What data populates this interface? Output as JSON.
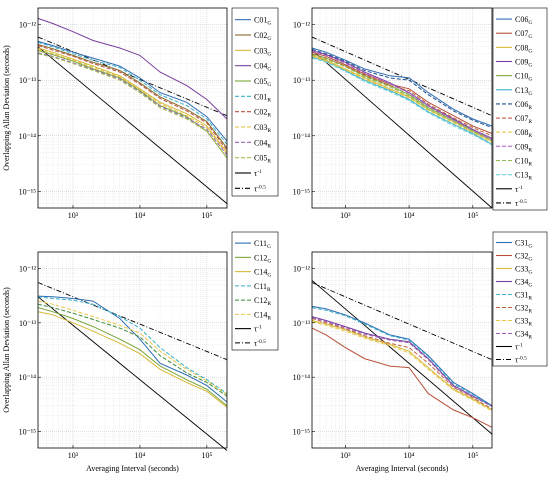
{
  "figure_ylabel": "Overlapping Allan Deviation (seconds)",
  "figure_xlabel": "Averaging Interval (seconds)",
  "chart_data": [
    {
      "type": "line",
      "panel": "top-left",
      "xscale": "log",
      "yscale": "log",
      "xlim": [
        300,
        200000
      ],
      "ylim": [
        5e-16,
        2e-12
      ],
      "xticks": [
        "10³",
        "10⁴",
        "10⁵"
      ],
      "yticks": [
        "10⁻¹²",
        "10⁻¹³",
        "10⁻¹⁴",
        "10⁻¹⁵"
      ],
      "ylabel": "Overlapping Allan Deviation (seconds)",
      "xlabel": "",
      "grid": true,
      "legend": "right",
      "x": [
        300,
        500,
        1000,
        2000,
        5000,
        10000,
        20000,
        50000,
        100000,
        200000
      ],
      "series": [
        {
          "name": "C01",
          "sub": "G",
          "color": "#2f6db4",
          "dash": "",
          "values": [
            5e-13,
            4.2e-13,
            3.2e-13,
            2.5e-13,
            1.8e-13,
            1.1e-13,
            6e-14,
            4e-14,
            2.2e-14,
            8e-15
          ]
        },
        {
          "name": "C02",
          "sub": "G",
          "color": "#8a6a2a",
          "dash": "",
          "values": [
            4.4e-13,
            3.7e-13,
            2.8e-13,
            2.1e-13,
            1.5e-13,
            9e-14,
            5e-14,
            3e-14,
            1.8e-14,
            6e-15
          ]
        },
        {
          "name": "C03",
          "sub": "G",
          "color": "#d8b93a",
          "dash": "",
          "values": [
            3.8e-13,
            3.2e-13,
            2.4e-13,
            1.8e-13,
            1.2e-13,
            7e-14,
            4e-14,
            2.5e-14,
            1.5e-14,
            5e-15
          ]
        },
        {
          "name": "C04",
          "sub": "G",
          "color": "#7a3f9e",
          "dash": "",
          "values": [
            1.3e-12,
            1.05e-12,
            7.5e-13,
            5.2e-13,
            3.8e-13,
            2.8e-13,
            1.4e-13,
            8e-14,
            4.5e-14,
            2e-14
          ]
        },
        {
          "name": "C05",
          "sub": "G",
          "color": "#7aa63a",
          "dash": "",
          "values": [
            3.4e-13,
            2.9e-13,
            2.2e-13,
            1.6e-13,
            1.1e-13,
            6.5e-14,
            3.5e-14,
            2.2e-14,
            1.2e-14,
            4e-15
          ]
        },
        {
          "name": "C01",
          "sub": "R",
          "color": "#3ab0c8",
          "dash": "4,2",
          "values": [
            4.8e-13,
            4e-13,
            3e-13,
            2.3e-13,
            1.7e-13,
            1e-13,
            5.5e-14,
            3.5e-14,
            2e-14,
            7e-15
          ]
        },
        {
          "name": "C02",
          "sub": "R",
          "color": "#b8503a",
          "dash": "4,2",
          "values": [
            4.2e-13,
            3.5e-13,
            2.7e-13,
            2e-13,
            1.4e-13,
            8.5e-14,
            4.7e-14,
            2.8e-14,
            1.7e-14,
            5.5e-15
          ]
        },
        {
          "name": "C03",
          "sub": "R",
          "color": "#e0c040",
          "dash": "4,2",
          "values": [
            3.6e-13,
            3e-13,
            2.3e-13,
            1.7e-13,
            1.15e-13,
            6.8e-14,
            3.8e-14,
            2.3e-14,
            1.4e-14,
            4.8e-15
          ]
        },
        {
          "name": "C04",
          "sub": "R",
          "color": "#9a60b8",
          "dash": "4,2",
          "values": [
            3.1e-13,
            2.7e-13,
            2.05e-13,
            1.55e-13,
            1.05e-13,
            6.2e-14,
            3.4e-14,
            2.1e-14,
            1.3e-14,
            4.5e-15
          ]
        },
        {
          "name": "C05",
          "sub": "R",
          "color": "#a0c050",
          "dash": "4,2",
          "values": [
            3e-13,
            2.6e-13,
            2e-13,
            1.5e-13,
            1e-13,
            6e-14,
            3.2e-14,
            2e-14,
            1.2e-14,
            4e-15
          ]
        }
      ]
    },
    {
      "type": "line",
      "panel": "top-right",
      "xscale": "log",
      "yscale": "log",
      "xlim": [
        300,
        200000
      ],
      "ylim": [
        5e-16,
        2e-12
      ],
      "xticks": [
        "10³",
        "10⁴",
        "10⁵"
      ],
      "yticks": [
        "10⁻¹²",
        "10⁻¹³",
        "10⁻¹⁴",
        "10⁻¹⁵"
      ],
      "ylabel": "",
      "xlabel": "",
      "grid": true,
      "legend": "right",
      "x": [
        300,
        500,
        1000,
        2000,
        5000,
        10000,
        20000,
        50000,
        100000,
        200000
      ],
      "series": [
        {
          "name": "C06",
          "sub": "G",
          "color": "#2f6db4",
          "dash": "",
          "values": [
            3.8e-13,
            3.2e-13,
            2.3e-13,
            1.6e-13,
            1.2e-13,
            1.1e-13,
            6e-14,
            3e-14,
            2e-14,
            1.5e-14
          ]
        },
        {
          "name": "C07",
          "sub": "G",
          "color": "#b8503a",
          "dash": "",
          "values": [
            3.2e-13,
            2.7e-13,
            1.9e-13,
            1.3e-13,
            8.5e-14,
            7e-14,
            4e-14,
            2.3e-14,
            1.5e-14,
            1.1e-14
          ]
        },
        {
          "name": "C08",
          "sub": "G",
          "color": "#d8b93a",
          "dash": "",
          "values": [
            2.8e-13,
            2.3e-13,
            1.6e-13,
            1.1e-13,
            7e-14,
            5e-14,
            3e-14,
            1.8e-14,
            1.2e-14,
            8e-15
          ]
        },
        {
          "name": "C09",
          "sub": "G",
          "color": "#7a3f9e",
          "dash": "",
          "values": [
            3.4e-13,
            2.9e-13,
            2.1e-13,
            1.4e-13,
            9e-14,
            6e-14,
            3.5e-14,
            2e-14,
            1.3e-14,
            9e-15
          ]
        },
        {
          "name": "C10",
          "sub": "G",
          "color": "#7aa63a",
          "dash": "",
          "values": [
            3e-13,
            2.5e-13,
            1.8e-13,
            1.2e-13,
            8e-14,
            5.5e-14,
            3.2e-14,
            1.9e-14,
            1.25e-14,
            8.5e-15
          ]
        },
        {
          "name": "C13",
          "sub": "G",
          "color": "#3ab0c8",
          "dash": "",
          "values": [
            2.6e-13,
            2.2e-13,
            1.5e-13,
            1e-13,
            6.5e-14,
            4.5e-14,
            2.7e-14,
            1.6e-14,
            1.1e-14,
            7e-15
          ]
        },
        {
          "name": "C06",
          "sub": "R",
          "color": "#1f4f8c",
          "dash": "4,2",
          "values": [
            3.6e-13,
            3e-13,
            2.2e-13,
            1.5e-13,
            1.1e-13,
            1e-13,
            5.5e-14,
            2.8e-14,
            1.9e-14,
            1.4e-14
          ]
        },
        {
          "name": "C07",
          "sub": "R",
          "color": "#c06040",
          "dash": "4,2",
          "values": [
            3e-13,
            2.5e-13,
            1.8e-13,
            1.25e-13,
            8e-14,
            6.5e-14,
            3.7e-14,
            2.1e-14,
            1.4e-14,
            1e-14
          ]
        },
        {
          "name": "C08",
          "sub": "R",
          "color": "#e8c848",
          "dash": "4,2",
          "values": [
            2.7e-13,
            2.2e-13,
            1.55e-13,
            1.05e-13,
            6.8e-14,
            4.8e-14,
            2.9e-14,
            1.7e-14,
            1.15e-14,
            7.5e-15
          ]
        },
        {
          "name": "C09",
          "sub": "R",
          "color": "#b070c8",
          "dash": "4,2",
          "values": [
            3.3e-13,
            2.8e-13,
            2e-13,
            1.35e-13,
            8.7e-14,
            5.8e-14,
            3.4e-14,
            1.9e-14,
            1.25e-14,
            8.5e-15
          ]
        },
        {
          "name": "C10",
          "sub": "R",
          "color": "#8fbf4a",
          "dash": "4,2",
          "values": [
            2.9e-13,
            2.4e-13,
            1.75e-13,
            1.15e-13,
            7.6e-14,
            5.2e-14,
            3e-14,
            1.8e-14,
            1.2e-14,
            8e-15
          ]
        },
        {
          "name": "C13",
          "sub": "R",
          "color": "#6fd0e0",
          "dash": "4,2",
          "values": [
            2.5e-13,
            2.1e-13,
            1.45e-13,
            9.5e-14,
            6.2e-14,
            4.3e-14,
            2.6e-14,
            1.5e-14,
            1.05e-14,
            6.8e-15
          ]
        }
      ]
    },
    {
      "type": "line",
      "panel": "bottom-left",
      "xscale": "log",
      "yscale": "log",
      "xlim": [
        300,
        200000
      ],
      "ylim": [
        5e-16,
        2e-12
      ],
      "xticks": [
        "10³",
        "10⁴",
        "10⁵"
      ],
      "yticks": [
        "10⁻¹²",
        "10⁻¹³",
        "10⁻¹⁴",
        "10⁻¹⁵"
      ],
      "ylabel": "Overlapping Allan Deviation (seconds)",
      "xlabel": "Averaging Interval (seconds)",
      "grid": true,
      "legend": "right",
      "x": [
        300,
        500,
        1000,
        2000,
        5000,
        10000,
        20000,
        50000,
        100000,
        200000
      ],
      "series": [
        {
          "name": "C11",
          "sub": "G",
          "color": "#2f6db4",
          "dash": "",
          "values": [
            3.1e-13,
            3e-13,
            2.8e-13,
            2.5e-13,
            1.2e-13,
            5e-14,
            1.8e-14,
            1.1e-14,
            7e-15,
            3.5e-15
          ]
        },
        {
          "name": "C12",
          "sub": "G",
          "color": "#7aa63a",
          "dash": "",
          "values": [
            1.9e-13,
            1.6e-13,
            1.2e-13,
            8.5e-14,
            5e-14,
            3.2e-14,
            1.6e-14,
            9e-15,
            6e-15,
            3e-15
          ]
        },
        {
          "name": "C14",
          "sub": "G",
          "color": "#d8b93a",
          "dash": "",
          "values": [
            1.6e-13,
            1.4e-13,
            1e-13,
            7e-14,
            4.2e-14,
            2.7e-14,
            1.4e-14,
            8e-15,
            5.5e-15,
            2.8e-15
          ]
        },
        {
          "name": "C11",
          "sub": "R",
          "color": "#3ab0c8",
          "dash": "4,2",
          "values": [
            3e-13,
            2.8e-13,
            2.6e-13,
            2.2e-13,
            1.3e-13,
            8e-14,
            3.5e-14,
            1.5e-14,
            9e-15,
            5e-15
          ]
        },
        {
          "name": "C12",
          "sub": "R",
          "color": "#3a8a3a",
          "dash": "4,2",
          "values": [
            2.2e-13,
            1.9e-13,
            1.5e-13,
            1.15e-13,
            8e-14,
            5.5e-14,
            2.5e-14,
            1.2e-14,
            8e-15,
            4.5e-15
          ]
        },
        {
          "name": "C14",
          "sub": "R",
          "color": "#e8c848",
          "dash": "4,2",
          "values": [
            2.5e-13,
            2.2e-13,
            1.7e-13,
            1.3e-13,
            9e-14,
            6.5e-14,
            3e-14,
            1.4e-14,
            8.5e-15,
            4.8e-15
          ]
        }
      ]
    },
    {
      "type": "line",
      "panel": "bottom-right",
      "xscale": "log",
      "yscale": "log",
      "xlim": [
        300,
        200000
      ],
      "ylim": [
        5e-16,
        2e-12
      ],
      "xticks": [
        "10³",
        "10⁴",
        "10⁵"
      ],
      "yticks": [
        "10⁻¹²",
        "10⁻¹³",
        "10⁻¹⁴",
        "10⁻¹⁵"
      ],
      "ylabel": "",
      "xlabel": "Averaging Interval (seconds)",
      "grid": true,
      "legend": "right",
      "x": [
        300,
        500,
        1000,
        2000,
        5000,
        10000,
        20000,
        50000,
        100000,
        200000
      ],
      "series": [
        {
          "name": "C31",
          "sub": "G",
          "color": "#2f6db4",
          "dash": "",
          "values": [
            2e-13,
            1.8e-13,
            1.4e-13,
            1e-13,
            6e-14,
            5e-14,
            2.5e-14,
            8e-15,
            5e-15,
            3e-15
          ]
        },
        {
          "name": "C32",
          "sub": "G",
          "color": "#b8503a",
          "dash": "",
          "values": [
            8e-14,
            6e-14,
            3.5e-14,
            2.2e-14,
            1.6e-14,
            1.5e-14,
            5e-15,
            2.5e-15,
            1.8e-15,
            1.2e-15
          ]
        },
        {
          "name": "C33",
          "sub": "G",
          "color": "#d8b93a",
          "dash": "",
          "values": [
            1.1e-13,
            9.5e-14,
            7.5e-14,
            5.5e-14,
            4e-14,
            3e-14,
            1.5e-14,
            6e-15,
            4e-15,
            2.5e-15
          ]
        },
        {
          "name": "C34",
          "sub": "G",
          "color": "#7a3f9e",
          "dash": "",
          "values": [
            1.3e-13,
            1.1e-13,
            8.5e-14,
            6.5e-14,
            5e-14,
            4.5e-14,
            2.2e-14,
            7e-15,
            4.5e-15,
            3e-15
          ]
        },
        {
          "name": "C31",
          "sub": "R",
          "color": "#3ab0c8",
          "dash": "4,2",
          "values": [
            1.9e-13,
            1.7e-13,
            1.35e-13,
            9.5e-14,
            5.8e-14,
            4.8e-14,
            2.4e-14,
            7.5e-15,
            4.8e-15,
            2.9e-15
          ]
        },
        {
          "name": "C32",
          "sub": "R",
          "color": "#c06040",
          "dash": "4,2",
          "values": [
            1.2e-13,
            1e-13,
            7.8e-14,
            5.8e-14,
            4.2e-14,
            3.5e-14,
            1.8e-14,
            6.5e-15,
            4.2e-15,
            2.6e-15
          ]
        },
        {
          "name": "C33",
          "sub": "R",
          "color": "#e8c848",
          "dash": "4,2",
          "values": [
            1.05e-13,
            9e-14,
            7e-14,
            5.2e-14,
            3.8e-14,
            2.8e-14,
            1.4e-14,
            5.8e-15,
            3.8e-15,
            2.4e-15
          ]
        },
        {
          "name": "C34",
          "sub": "R",
          "color": "#9a60b8",
          "dash": "4,2",
          "values": [
            1.25e-13,
            1.05e-13,
            8.2e-14,
            6.2e-14,
            4.8e-14,
            4.3e-14,
            2.1e-14,
            6.8e-15,
            4.4e-15,
            2.9e-15
          ]
        }
      ]
    }
  ],
  "reference_lines": [
    {
      "name": "τ",
      "sup": "-1",
      "color": "#000000",
      "dash": ""
    },
    {
      "name": "τ",
      "sup": "-0.5",
      "color": "#000000",
      "dash": "5,2,1,2"
    }
  ],
  "reference_line_values": {
    "x": [
      300,
      200000
    ],
    "tau_minus_1": [
      [
        4e-13,
        6e-16
      ],
      [
        3.5e-13,
        5e-16
      ],
      [
        3e-13,
        4.5e-16
      ],
      [
        6e-13,
        9e-16
      ]
    ],
    "tau_minus_half": [
      [
        6e-13,
        2.3e-14
      ],
      [
        6e-13,
        2.3e-14
      ],
      [
        5.5e-13,
        2.1e-14
      ],
      [
        5.5e-13,
        2.1e-14
      ]
    ]
  }
}
